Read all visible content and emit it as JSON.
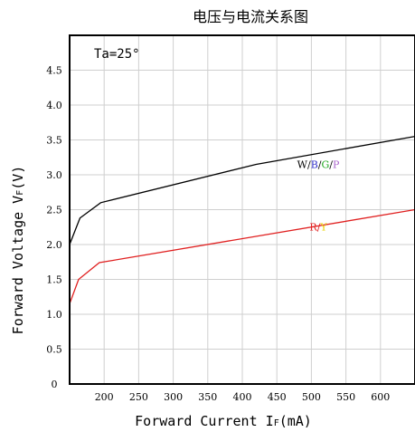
{
  "chart_data": {
    "type": "line",
    "title": "电压与电流关系图",
    "xlabel": {
      "main": "Forward Current I",
      "sub": "F",
      "unit": "(mA)"
    },
    "ylabel": {
      "main": "Forward Voltage V",
      "sub": "F",
      "unit": "(V)"
    },
    "annotation": "Ta=25°",
    "xlim": [
      150,
      650
    ],
    "ylim": [
      0,
      5
    ],
    "x_ticks": [
      200,
      250,
      300,
      350,
      400,
      450,
      500,
      550,
      600
    ],
    "y_ticks": [
      "0",
      "0.5",
      "1.0",
      "1.5",
      "2.0",
      "2.5",
      "3.0",
      "3.5",
      "4.0",
      "4.5"
    ],
    "y_tick_values": [
      0,
      0.5,
      1.0,
      1.5,
      2.0,
      2.5,
      3.0,
      3.5,
      4.0,
      4.5
    ],
    "grid": true,
    "series": [
      {
        "color": "#000000",
        "x": [
          150,
          165,
          195,
          420,
          650
        ],
        "y": [
          2.0,
          2.38,
          2.6,
          3.15,
          3.55
        ],
        "legend_label_pos": [
          510,
          3.1
        ],
        "label_parts": [
          {
            "text": "W",
            "color": "#000000"
          },
          {
            "text": "/",
            "color": "#000000"
          },
          {
            "text": "B",
            "color": "#3333cc"
          },
          {
            "text": "/",
            "color": "#000000"
          },
          {
            "text": "G",
            "color": "#22aa22"
          },
          {
            "text": "/",
            "color": "#000000"
          },
          {
            "text": "P",
            "color": "#aa66cc"
          }
        ]
      },
      {
        "color": "#e02020",
        "x": [
          150,
          163,
          193,
          650
        ],
        "y": [
          1.15,
          1.5,
          1.74,
          2.5
        ],
        "legend_label_pos": [
          510,
          2.2
        ],
        "label_parts": [
          {
            "text": "R",
            "color": "#e02020"
          },
          {
            "text": "/",
            "color": "#e02020"
          },
          {
            "text": "Y",
            "color": "#e8d000"
          }
        ]
      }
    ]
  }
}
